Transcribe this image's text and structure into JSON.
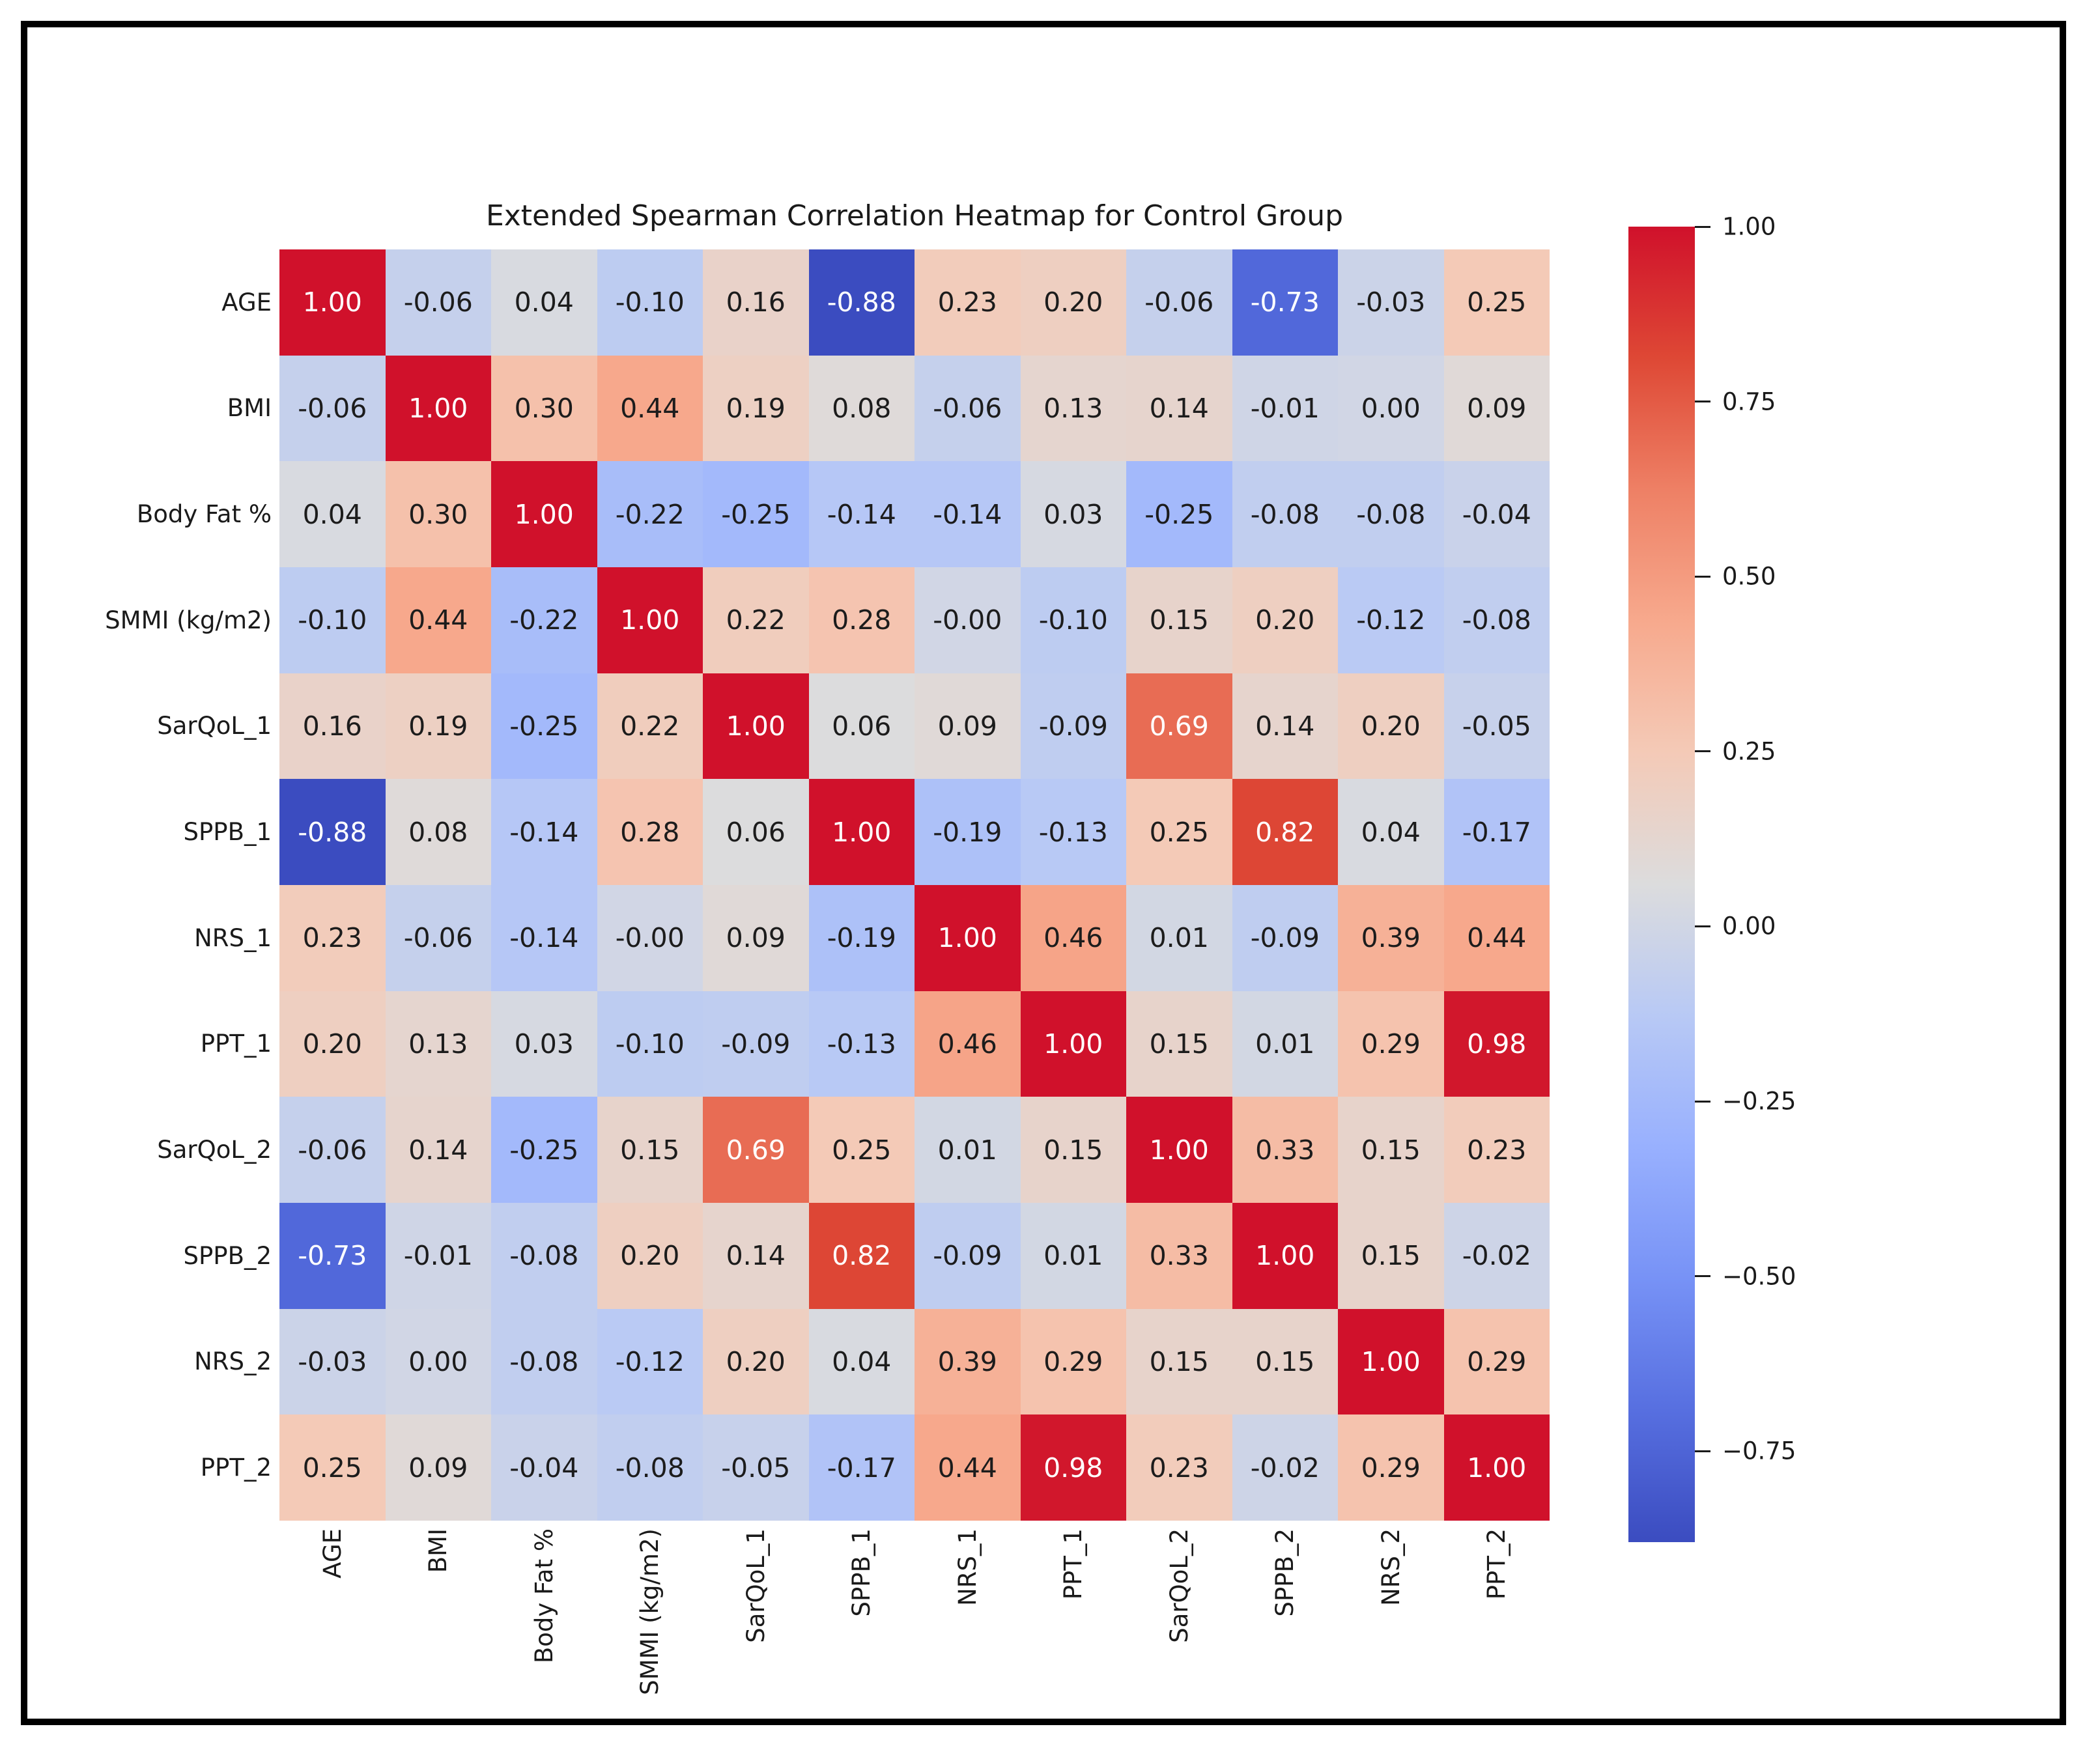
{
  "figure": {
    "title": "Extended Spearman Correlation Heatmap for Control Group"
  },
  "chart_data": {
    "type": "heatmap",
    "title": "Extended Spearman Correlation Heatmap for Control Group",
    "categories": [
      "AGE",
      "BMI",
      "Body Fat %",
      "SMMI (kg/m2)",
      "SarQoL_1",
      "SPPB_1",
      "NRS_1",
      "PPT_1",
      "SarQoL_2",
      "SPPB_2",
      "NRS_2",
      "PPT_2"
    ],
    "matrix_display": [
      [
        "1.00",
        "-0.06",
        "0.04",
        "-0.10",
        "0.16",
        "-0.88",
        "0.23",
        "0.20",
        "-0.06",
        "-0.73",
        "-0.03",
        "0.25"
      ],
      [
        "-0.06",
        "1.00",
        "0.30",
        "0.44",
        "0.19",
        "0.08",
        "-0.06",
        "0.13",
        "0.14",
        "-0.01",
        "0.00",
        "0.09"
      ],
      [
        "0.04",
        "0.30",
        "1.00",
        "-0.22",
        "-0.25",
        "-0.14",
        "-0.14",
        "0.03",
        "-0.25",
        "-0.08",
        "-0.08",
        "-0.04"
      ],
      [
        "-0.10",
        "0.44",
        "-0.22",
        "1.00",
        "0.22",
        "0.28",
        "-0.00",
        "-0.10",
        "0.15",
        "0.20",
        "-0.12",
        "-0.08"
      ],
      [
        "0.16",
        "0.19",
        "-0.25",
        "0.22",
        "1.00",
        "0.06",
        "0.09",
        "-0.09",
        "0.69",
        "0.14",
        "0.20",
        "-0.05"
      ],
      [
        "-0.88",
        "0.08",
        "-0.14",
        "0.28",
        "0.06",
        "1.00",
        "-0.19",
        "-0.13",
        "0.25",
        "0.82",
        "0.04",
        "-0.17"
      ],
      [
        "0.23",
        "-0.06",
        "-0.14",
        "-0.00",
        "0.09",
        "-0.19",
        "1.00",
        "0.46",
        "0.01",
        "-0.09",
        "0.39",
        "0.44"
      ],
      [
        "0.20",
        "0.13",
        "0.03",
        "-0.10",
        "-0.09",
        "-0.13",
        "0.46",
        "1.00",
        "0.15",
        "0.01",
        "0.29",
        "0.98"
      ],
      [
        "-0.06",
        "0.14",
        "-0.25",
        "0.15",
        "0.69",
        "0.25",
        "0.01",
        "0.15",
        "1.00",
        "0.33",
        "0.15",
        "0.23"
      ],
      [
        "-0.73",
        "-0.01",
        "-0.08",
        "0.20",
        "0.14",
        "0.82",
        "-0.09",
        "0.01",
        "0.33",
        "1.00",
        "0.15",
        "-0.02"
      ],
      [
        "-0.03",
        "0.00",
        "-0.08",
        "-0.12",
        "0.20",
        "0.04",
        "0.39",
        "0.29",
        "0.15",
        "0.15",
        "1.00",
        "0.29"
      ],
      [
        "0.25",
        "0.09",
        "-0.04",
        "-0.08",
        "-0.05",
        "-0.17",
        "0.44",
        "0.98",
        "0.23",
        "-0.02",
        "0.29",
        "1.00"
      ]
    ],
    "vmin": -0.88,
    "vmax": 1.0,
    "colormap": "coolwarm",
    "colormap_anchors": [
      [
        0.0,
        "#3b4cc0"
      ],
      [
        0.1,
        "#576fe0"
      ],
      [
        0.2,
        "#7792f6"
      ],
      [
        0.3,
        "#98b0fe"
      ],
      [
        0.4,
        "#b8c9f5"
      ],
      [
        0.5,
        "#dcdcdd"
      ],
      [
        0.6,
        "#f4cab7"
      ],
      [
        0.7,
        "#f7a98d"
      ],
      [
        0.8,
        "#ee8065"
      ],
      [
        0.9,
        "#de4835"
      ],
      [
        1.0,
        "#d0112b"
      ]
    ],
    "annotation_colors": {
      "dark": "#1c1c1c",
      "light": "#ffffff"
    },
    "colorbar_ticks": [
      {
        "value": 1.0,
        "label": "1.00"
      },
      {
        "value": 0.75,
        "label": "0.75"
      },
      {
        "value": 0.5,
        "label": "0.50"
      },
      {
        "value": 0.25,
        "label": "0.25"
      },
      {
        "value": 0.0,
        "label": "0.00"
      },
      {
        "value": -0.25,
        "label": "−0.25"
      },
      {
        "value": -0.5,
        "label": "−0.50"
      },
      {
        "value": -0.75,
        "label": "−0.75"
      }
    ],
    "legend_position": "right",
    "grid": false,
    "frame_color": "#000000",
    "background_color": "#ffffff"
  }
}
